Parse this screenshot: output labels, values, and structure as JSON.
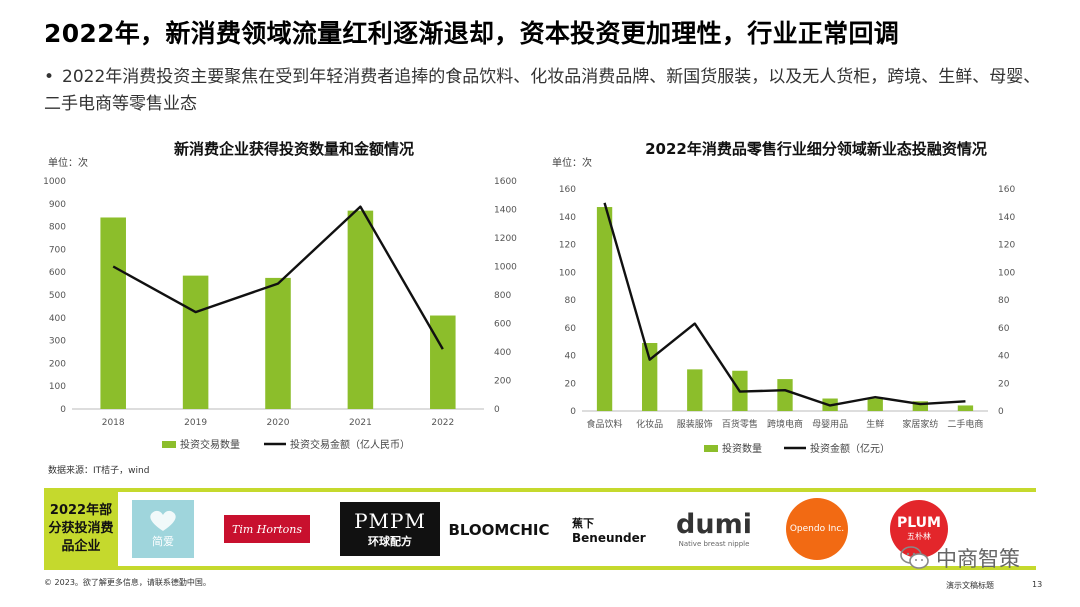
{
  "header": {
    "title": "2022年，新消费领域流量红利逐渐退却，资本投资更加理性，行业正常回调",
    "bullet": "2022年消费投资主要聚焦在受到年轻消费者追捧的食品饮料、化妆品消费品牌、新国货服装，以及无人货柜，跨境、生鲜、母婴、二手电商等零售业态"
  },
  "chart_data": [
    {
      "type": "bar",
      "title": "新消费企业获得投资数量和金额情况",
      "unit_label": "单位：次",
      "categories": [
        "2018",
        "2019",
        "2020",
        "2021",
        "2022"
      ],
      "series": [
        {
          "name": "投资交易数量",
          "kind": "bar",
          "axis": "left",
          "values": [
            840,
            585,
            575,
            870,
            410
          ]
        },
        {
          "name": "投资交易金额（亿人民币）",
          "kind": "line",
          "axis": "right",
          "values": [
            1000,
            680,
            880,
            1420,
            420
          ]
        }
      ],
      "ylim": [
        0,
        1000
      ],
      "yticks": [
        "0",
        "100",
        "200",
        "300",
        "400",
        "500",
        "600",
        "700",
        "800",
        "900",
        "1000"
      ],
      "y2lim": [
        0,
        1600
      ],
      "y2ticks": [
        "0",
        "200",
        "400",
        "600",
        "800",
        "1000",
        "1200",
        "1400",
        "1600"
      ],
      "colors": {
        "bar": "#8cbe2b",
        "line": "#111111"
      },
      "legend_position": "bottom"
    },
    {
      "type": "bar",
      "title": "2022年消费品零售行业细分领域新业态投融资情况",
      "unit_label": "单位：次",
      "categories": [
        "食品饮料",
        "化妆品",
        "服装服饰",
        "百货零售",
        "跨境电商",
        "母婴用品",
        "生鲜",
        "家居家纺",
        "二手电商"
      ],
      "series": [
        {
          "name": "投资数量",
          "kind": "bar",
          "axis": "left",
          "values": [
            147,
            49,
            30,
            29,
            23,
            9,
            9,
            7,
            4
          ]
        },
        {
          "name": "投资金额（亿元）",
          "kind": "line",
          "axis": "right",
          "values": [
            150,
            37,
            63,
            14,
            15,
            4,
            10,
            5,
            7
          ]
        }
      ],
      "ylim": [
        0,
        160
      ],
      "yticks": [
        "0",
        "20",
        "40",
        "60",
        "80",
        "100",
        "120",
        "140",
        "160"
      ],
      "y2lim": [
        0,
        160
      ],
      "y2ticks": [
        "0",
        "20",
        "40",
        "60",
        "80",
        "100",
        "120",
        "140",
        "160"
      ],
      "colors": {
        "bar": "#8cbe2b",
        "line": "#111111"
      },
      "legend_position": "bottom"
    }
  ],
  "source": "数据来源：IT桔子，wind",
  "logo_strip": {
    "label": "2022年部分获投消费品企业",
    "accent": "#c5d92d",
    "logos": [
      {
        "name": "简爱",
        "text": "简爱"
      },
      {
        "name": "Tim Hortons",
        "text": "Tim Hortons"
      },
      {
        "name": "PMPM 环球配方",
        "text_top": "PMPM",
        "text_bottom": "环球配方"
      },
      {
        "name": "BLOOMCHIC",
        "text": "BLOOMCHIC"
      },
      {
        "name": "蕉下 Beneunder",
        "text_top": "蕉下",
        "text_bottom": "Beneunder"
      },
      {
        "name": "dumi",
        "text_top": "dumi",
        "text_bottom": "Native breast nipple"
      },
      {
        "name": "Opendo Inc.",
        "text": "Opendo Inc."
      },
      {
        "name": "PLUM 五朴林",
        "text_top": "PLUM",
        "text_bottom": "五朴林"
      }
    ]
  },
  "footer": {
    "copyright": "© 2023。欲了解更多信息，请联系德勤中国。",
    "right_text": "演示文稿标题",
    "page_number": "13"
  },
  "watermark": {
    "text": "中商智策",
    "icon": "wechat-icon"
  }
}
